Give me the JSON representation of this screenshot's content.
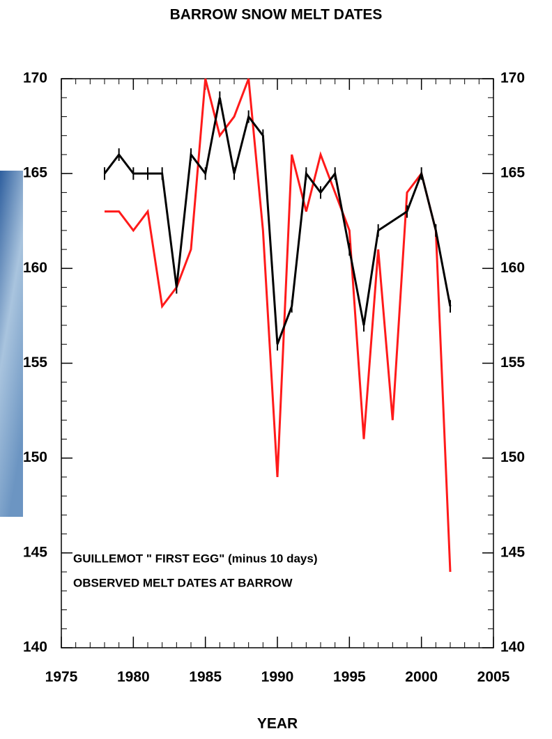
{
  "chart_data": {
    "type": "line",
    "title": "BARROW SNOW MELT DATES",
    "x_label": "YEAR",
    "series": [
      {
        "name": "GUILLEMOT \" FIRST EGG\" (minus 10 days)",
        "color": "#000000",
        "markers": true,
        "x": [
          1978,
          1979,
          1980,
          1981,
          1982,
          1983,
          1984,
          1985,
          1986,
          1987,
          1988,
          1989,
          1990,
          1991,
          1992,
          1993,
          1994,
          1995,
          1996,
          1997,
          1999,
          2000,
          2001,
          2002
        ],
        "values": [
          165,
          166,
          165,
          165,
          165,
          159,
          166,
          165,
          169,
          165,
          168,
          167,
          156,
          158,
          165,
          164,
          165,
          161,
          157,
          162,
          163,
          165,
          162,
          158
        ]
      },
      {
        "name": "OBSERVED MELT DATES AT BARROW",
        "color": "#ff1a1a",
        "markers": false,
        "x": [
          1978,
          1979,
          1980,
          1981,
          1982,
          1983,
          1984,
          1985,
          1986,
          1987,
          1988,
          1989,
          1990,
          1991,
          1992,
          1993,
          1994,
          1995,
          1996,
          1997,
          1998,
          1999,
          2000,
          2001,
          2002
        ],
        "values": [
          163,
          163,
          162,
          163,
          158,
          159,
          161,
          170,
          167,
          168,
          170,
          162,
          149,
          166,
          163,
          166,
          164,
          162,
          151,
          161,
          152,
          164,
          165,
          162,
          144
        ]
      }
    ],
    "xlim": [
      1975,
      2005
    ],
    "xticks": [
      1975,
      1980,
      1985,
      1990,
      1995,
      2000,
      2005
    ],
    "xminor": 1,
    "ylim": [
      140,
      170
    ],
    "yticks": [
      140,
      145,
      150,
      155,
      160,
      165,
      170
    ],
    "yminor": 1
  }
}
